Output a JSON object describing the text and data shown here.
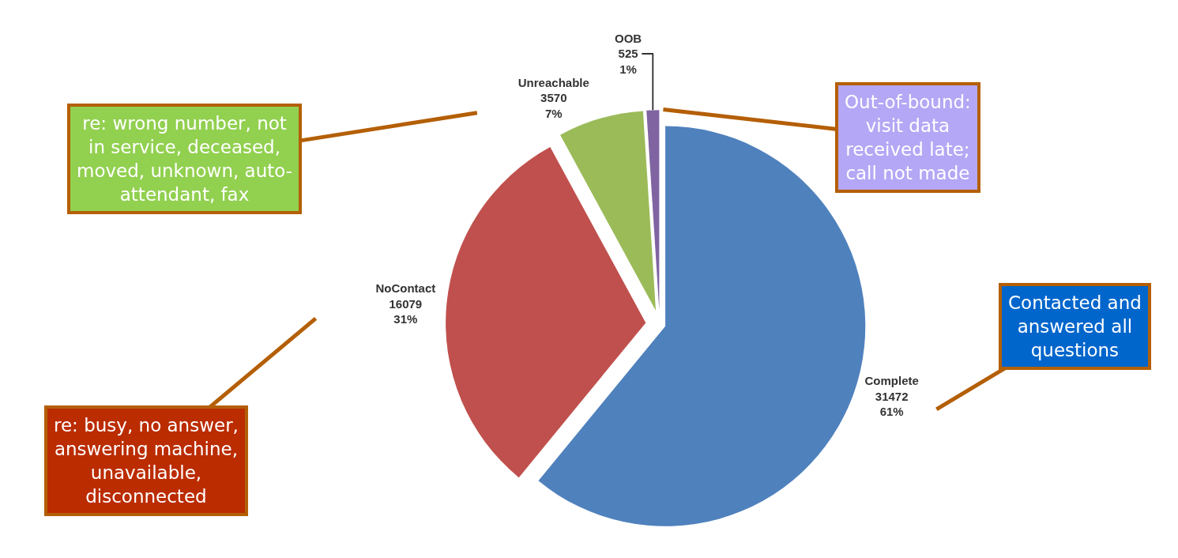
{
  "chart_data": {
    "type": "pie",
    "categories": [
      "Complete",
      "NoContact",
      "Unreachable",
      "OOB"
    ],
    "values": [
      31472,
      16079,
      3570,
      525
    ],
    "value_labels": [
      "31472\n61%",
      "16079\n31%",
      "3570\n7%",
      "525\n1%"
    ],
    "colors": [
      "#4f81bd",
      "#c0504d",
      "#9bbb59",
      "#8064a2"
    ],
    "legend": false,
    "annotations": [
      "re: wrong number, not in service, deceased, moved, unknown, auto-attendant, fax",
      "Out-of-bound: visit data received late; call not made",
      "Contacted and answered all questions",
      "re: busy, no answer, answering machine, unavailable, disconnected"
    ]
  }
}
